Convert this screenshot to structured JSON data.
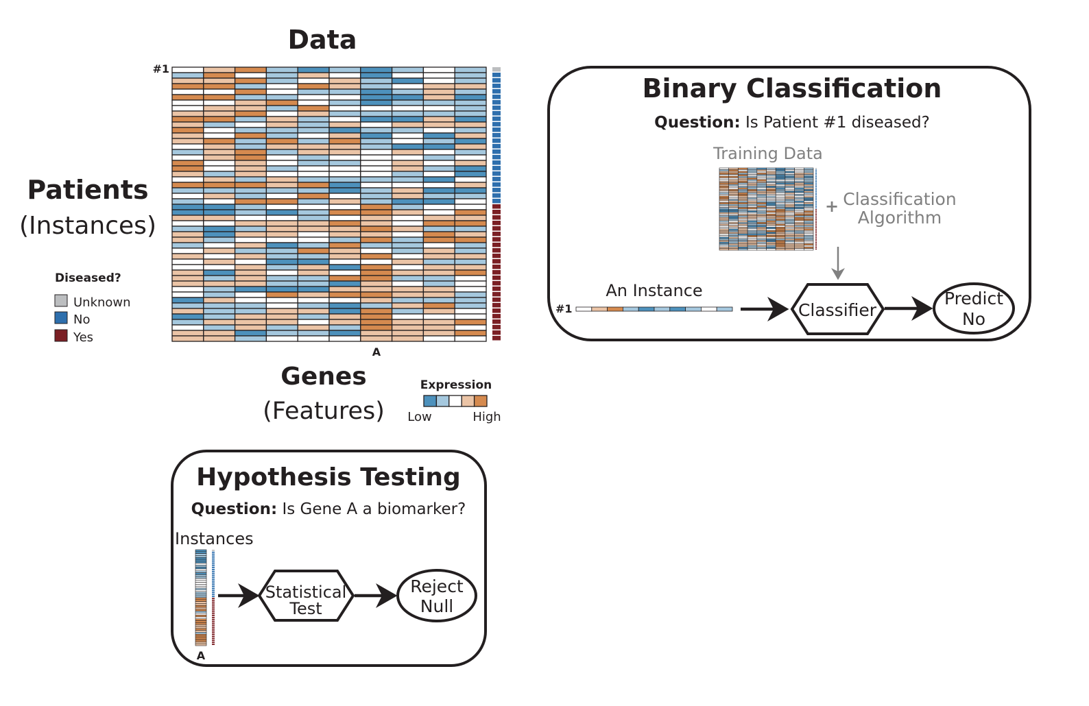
{
  "data_panel": {
    "title": "Data",
    "row_marker": "#1",
    "rows_title": "Patients",
    "rows_subtitle": "(Instances)",
    "cols_title": "Genes",
    "cols_subtitle": "(Features)",
    "column_marker": "A",
    "num_rows": 50,
    "num_columns": 10,
    "highlight_column_index": 6,
    "diseased_labels": {
      "unknown_rows": 1,
      "no_rows": 24,
      "yes_rows": 25
    }
  },
  "legend_diseased": {
    "title": "Diseased?",
    "items": [
      {
        "label": "Unknown",
        "color": "#bcbec0"
      },
      {
        "label": "No",
        "color": "#2e6fad"
      },
      {
        "label": "Yes",
        "color": "#7b1f24"
      }
    ]
  },
  "legend_expression": {
    "title": "Expression",
    "low": "Low",
    "high": "High",
    "scale_colors": [
      "#4d91bc",
      "#a5c8de",
      "#ffffff",
      "#ebc4a6",
      "#d58a4f"
    ]
  },
  "binary_classification": {
    "title": "Binary Classification",
    "question_label": "Question:",
    "question_text": " Is Patient #1 diseased?",
    "training_label": "Training Data",
    "plus": "+",
    "algorithm_line1": "Classification",
    "algorithm_line2": "Algorithm",
    "instance_label": "An Instance",
    "instance_marker": "#1",
    "instance_values": [
      0,
      1,
      2,
      -1,
      -2,
      -1,
      -2,
      -1,
      0,
      -1
    ],
    "classifier_label": "Classifier",
    "result_line1": "Predict",
    "result_line2": "No"
  },
  "hypothesis_testing": {
    "title": "Hypothesis Testing",
    "question_label": "Question:",
    "question_text": " Is Gene A a biomarker?",
    "instances_label": "Instances",
    "column_marker": "A",
    "test_line1": "Statistical",
    "test_line2": "Test",
    "result_line1": "Reject",
    "result_line2": "Null"
  }
}
